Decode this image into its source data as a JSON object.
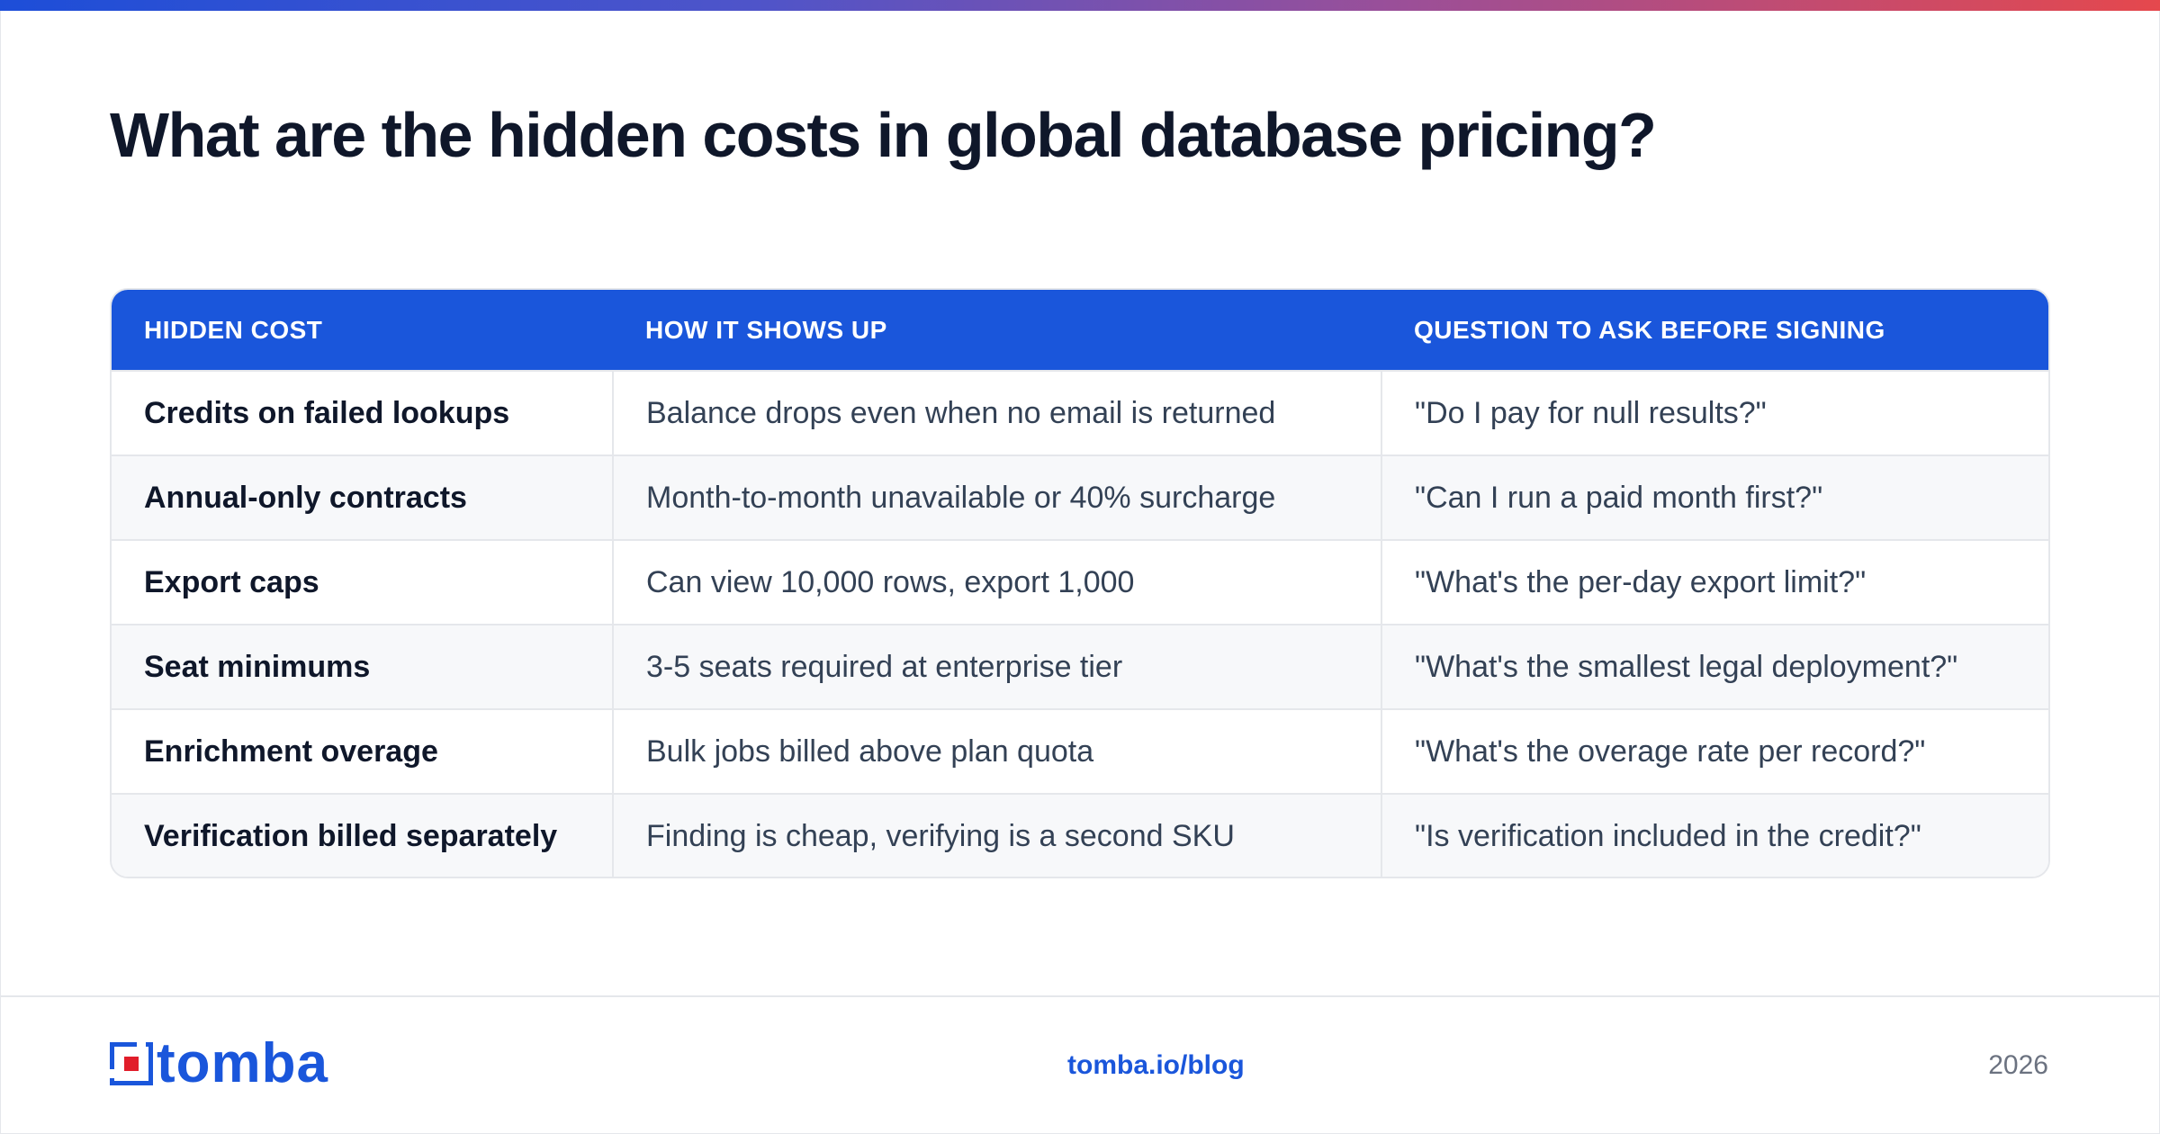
{
  "title": "What are the hidden costs in global database pricing?",
  "table": {
    "headers": [
      "HIDDEN COST",
      "HOW IT SHOWS UP",
      "QUESTION TO ASK BEFORE SIGNING"
    ],
    "rows": [
      [
        "Credits on failed lookups",
        "Balance drops even when no email is returned",
        "\"Do I pay for null results?\""
      ],
      [
        "Annual-only contracts",
        "Month-to-month unavailable or 40% surcharge",
        "\"Can I run a paid month first?\""
      ],
      [
        "Export caps",
        "Can view 10,000 rows, export 1,000",
        "\"What's the per-day export limit?\""
      ],
      [
        "Seat minimums",
        "3-5 seats required at enterprise tier",
        "\"What's the smallest legal deployment?\""
      ],
      [
        "Enrichment overage",
        "Bulk jobs billed above plan quota",
        "\"What's the overage rate per record?\""
      ],
      [
        "Verification billed separately",
        "Finding is cheap, verifying is a second SKU",
        "\"Is verification included in the credit?\""
      ]
    ]
  },
  "footer": {
    "logo_text": "tomba",
    "link": "tomba.io/blog",
    "year": "2026"
  },
  "colors": {
    "brand_blue": "#1a56db",
    "logo_red": "#e11d2a",
    "title": "#0f172a"
  },
  "icons": {
    "logo_mark": "tomba-logo-icon"
  }
}
